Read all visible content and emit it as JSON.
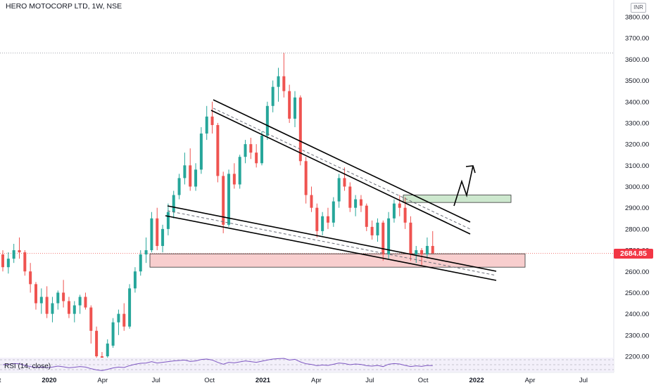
{
  "chart_data": {
    "type": "candlestick",
    "title": "HERO MOTOCORP LTD, 1W, NSE",
    "currency": "INR",
    "last_price": "2684.85",
    "indicator_label": "RSI (14, close)",
    "ylim": [
      2200,
      3800
    ],
    "y_ticks": [
      "2200.00",
      "2300.00",
      "2400.00",
      "2500.00",
      "2600.00",
      "2700.00",
      "2800.00",
      "2900.00",
      "3000.00",
      "3100.00",
      "3200.00",
      "3300.00",
      "3400.00",
      "3500.00",
      "3600.00",
      "3700.00",
      "3800.00"
    ],
    "x_ticks": [
      "Oct",
      "2020",
      "Apr",
      "Jul",
      "Oct",
      "2021",
      "Apr",
      "Jul",
      "Oct",
      "2022",
      "Apr",
      "Jul"
    ],
    "x_tick_positions": [
      0,
      3,
      6,
      9,
      12,
      15,
      18,
      21,
      24,
      27,
      30,
      33
    ],
    "high_line": 3630,
    "colors": {
      "up": "#26a69a",
      "down": "#ef5350",
      "support": "#f7c5c5",
      "resistance": "#c8e6c9",
      "rsi": "#7e57c2"
    },
    "candles": [
      [
        2680,
        2700,
        2600,
        2620
      ],
      [
        2620,
        2690,
        2590,
        2660
      ],
      [
        2660,
        2730,
        2640,
        2700
      ],
      [
        2700,
        2760,
        2660,
        2690
      ],
      [
        2690,
        2700,
        2580,
        2600
      ],
      [
        2600,
        2640,
        2500,
        2540
      ],
      [
        2540,
        2550,
        2420,
        2450
      ],
      [
        2450,
        2520,
        2400,
        2480
      ],
      [
        2480,
        2530,
        2380,
        2400
      ],
      [
        2400,
        2480,
        2360,
        2450
      ],
      [
        2450,
        2510,
        2420,
        2500
      ],
      [
        2500,
        2560,
        2430,
        2460
      ],
      [
        2460,
        2480,
        2380,
        2400
      ],
      [
        2400,
        2460,
        2360,
        2440
      ],
      [
        2440,
        2490,
        2400,
        2480
      ],
      [
        2480,
        2500,
        2420,
        2430
      ],
      [
        2430,
        2440,
        2260,
        2320
      ],
      [
        2320,
        2340,
        2180,
        2200
      ],
      [
        2200,
        2220,
        2140,
        2180
      ],
      [
        2200,
        2280,
        2190,
        2260
      ],
      [
        2250,
        2380,
        2240,
        2360
      ],
      [
        2360,
        2420,
        2300,
        2400
      ],
      [
        2400,
        2450,
        2320,
        2340
      ],
      [
        2340,
        2540,
        2330,
        2520
      ],
      [
        2520,
        2620,
        2500,
        2600
      ],
      [
        2600,
        2700,
        2580,
        2680
      ],
      [
        2680,
        2760,
        2640,
        2700
      ],
      [
        2700,
        2880,
        2690,
        2850
      ],
      [
        2850,
        2900,
        2700,
        2720
      ],
      [
        2720,
        2820,
        2690,
        2800
      ],
      [
        2800,
        2920,
        2770,
        2880
      ],
      [
        2880,
        2980,
        2850,
        2960
      ],
      [
        2960,
        3060,
        2940,
        3040
      ],
      [
        3040,
        3160,
        3010,
        3100
      ],
      [
        3100,
        3180,
        2980,
        3000
      ],
      [
        3000,
        3110,
        2980,
        3080
      ],
      [
        3080,
        3280,
        3060,
        3250
      ],
      [
        3250,
        3380,
        3220,
        3330
      ],
      [
        3330,
        3400,
        3250,
        3290
      ],
      [
        3290,
        3300,
        3020,
        3050
      ],
      [
        3050,
        3070,
        2780,
        2820
      ],
      [
        2820,
        3080,
        2810,
        3060
      ],
      [
        3060,
        3110,
        2990,
        3010
      ],
      [
        3010,
        3150,
        2990,
        3140
      ],
      [
        3140,
        3220,
        3110,
        3200
      ],
      [
        3200,
        3230,
        3130,
        3160
      ],
      [
        3160,
        3200,
        3090,
        3110
      ],
      [
        3110,
        3260,
        3100,
        3240
      ],
      [
        3240,
        3400,
        3220,
        3380
      ],
      [
        3380,
        3500,
        3350,
        3470
      ],
      [
        3470,
        3560,
        3400,
        3520
      ],
      [
        3520,
        3630,
        3420,
        3450
      ],
      [
        3450,
        3480,
        3300,
        3320
      ],
      [
        3320,
        3450,
        3280,
        3420
      ],
      [
        3420,
        3430,
        3100,
        3120
      ],
      [
        3120,
        3140,
        2920,
        2960
      ],
      [
        2960,
        3000,
        2880,
        2900
      ],
      [
        2900,
        2920,
        2760,
        2790
      ],
      [
        2790,
        2880,
        2770,
        2860
      ],
      [
        2860,
        2900,
        2800,
        2830
      ],
      [
        2830,
        2950,
        2810,
        2930
      ],
      [
        2930,
        3060,
        2900,
        3040
      ],
      [
        3040,
        3090,
        2980,
        3000
      ],
      [
        3000,
        3020,
        2880,
        2900
      ],
      [
        2900,
        2960,
        2860,
        2940
      ],
      [
        2940,
        2960,
        2880,
        2910
      ],
      [
        2910,
        2920,
        2790,
        2810
      ],
      [
        2810,
        2840,
        2750,
        2770
      ],
      [
        2770,
        2850,
        2740,
        2830
      ],
      [
        2830,
        2840,
        2650,
        2680
      ],
      [
        2680,
        2880,
        2660,
        2850
      ],
      [
        2850,
        2940,
        2830,
        2920
      ],
      [
        2920,
        2960,
        2860,
        2900
      ],
      [
        2900,
        2950,
        2800,
        2830
      ],
      [
        2830,
        2860,
        2650,
        2680
      ],
      [
        2680,
        2720,
        2640,
        2700
      ],
      [
        2700,
        2710,
        2630,
        2680
      ],
      [
        2680,
        2760,
        2660,
        2720
      ],
      [
        2720,
        2790,
        2690,
        2684.85
      ]
    ],
    "rsi": [
      50,
      52,
      55,
      54,
      47,
      42,
      38,
      40,
      37,
      40,
      44,
      41,
      37,
      39,
      42,
      40,
      33,
      28,
      25,
      30,
      36,
      40,
      38,
      46,
      52,
      56,
      57,
      63,
      57,
      60,
      63,
      66,
      68,
      70,
      64,
      66,
      72,
      74,
      70,
      60,
      52,
      60,
      58,
      62,
      66,
      63,
      60,
      65,
      70,
      74,
      76,
      77,
      70,
      73,
      62,
      54,
      51,
      46,
      49,
      47,
      52,
      57,
      55,
      50,
      53,
      51,
      46,
      44,
      47,
      42,
      52,
      55,
      53,
      47,
      42,
      45,
      43,
      47,
      46
    ]
  }
}
